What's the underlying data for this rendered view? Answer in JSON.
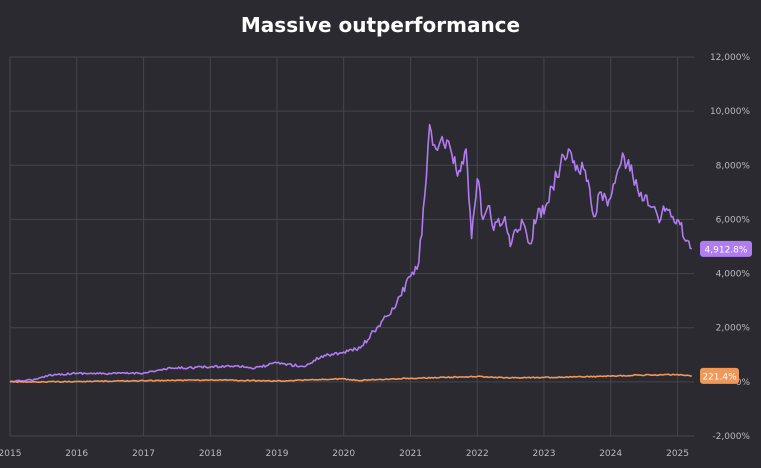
{
  "chart_data": {
    "type": "line",
    "title": "Massive outperformance",
    "xlabel": "",
    "ylabel": "",
    "x_ticks": [
      "2015",
      "2016",
      "2017",
      "2018",
      "2019",
      "2020",
      "2021",
      "2022",
      "2023",
      "2024",
      "2025"
    ],
    "y_ticks": [
      "-2,000%",
      "0%",
      "2,000%",
      "4,000%",
      "6,000%",
      "8,000%",
      "10,000%",
      "12,000%"
    ],
    "ylim": [
      -2000,
      12000
    ],
    "xlim": [
      "2015-01-01",
      "2025-04-01"
    ],
    "grid": true,
    "series": [
      {
        "color": "#b07cf0",
        "end_label": "4,912.8%",
        "x": [
          "2015-01-01",
          "2015-06-01",
          "2015-08-01",
          "2016-01-01",
          "2016-06-01",
          "2017-01-01",
          "2017-06-01",
          "2018-01-01",
          "2018-06-01",
          "2018-09-01",
          "2019-01-01",
          "2019-06-01",
          "2019-09-01",
          "2020-01-01",
          "2020-04-01",
          "2020-07-01",
          "2020-10-01",
          "2021-01-01",
          "2021-02-15",
          "2021-03-20",
          "2021-04-15",
          "2021-05-20",
          "2021-07-01",
          "2021-08-15",
          "2021-09-15",
          "2021-11-01",
          "2021-12-01",
          "2022-01-01",
          "2022-02-01",
          "2022-03-01",
          "2022-04-01",
          "2022-06-01",
          "2022-07-01",
          "2022-09-01",
          "2022-10-15",
          "2022-12-01",
          "2023-01-01",
          "2023-02-15",
          "2023-04-01",
          "2023-05-15",
          "2023-07-01",
          "2023-08-15",
          "2023-10-01",
          "2023-11-01",
          "2023-12-15",
          "2024-02-01",
          "2024-03-15",
          "2024-05-01",
          "2024-06-15",
          "2024-08-01",
          "2024-09-15",
          "2024-11-01",
          "2024-12-15",
          "2025-01-15",
          "2025-02-15",
          "2025-03-20"
        ],
        "y": [
          0,
          100,
          250,
          320,
          300,
          330,
          500,
          550,
          600,
          500,
          700,
          560,
          950,
          1100,
          1250,
          2000,
          2700,
          3900,
          4400,
          6900,
          9500,
          8600,
          8800,
          8400,
          7600,
          8600,
          5300,
          7500,
          6000,
          6500,
          5600,
          6100,
          5000,
          6000,
          5100,
          6400,
          6200,
          7200,
          8000,
          8600,
          8000,
          7800,
          6100,
          7000,
          6500,
          7600,
          8300,
          7600,
          7000,
          6500,
          6100,
          6400,
          5900,
          5800,
          5200,
          4912.8
        ]
      },
      {
        "color": "#f0975a",
        "end_label": "221.4%",
        "x": [
          "2015-01-01",
          "2016-01-01",
          "2017-01-01",
          "2018-01-01",
          "2019-01-01",
          "2020-01-01",
          "2020-03-20",
          "2020-06-01",
          "2021-01-01",
          "2022-01-01",
          "2022-06-01",
          "2023-01-01",
          "2024-01-01",
          "2024-06-01",
          "2025-01-01",
          "2025-03-20"
        ],
        "y": [
          0,
          10,
          40,
          70,
          30,
          110,
          50,
          80,
          130,
          200,
          150,
          160,
          210,
          250,
          270,
          221.4
        ]
      }
    ]
  }
}
